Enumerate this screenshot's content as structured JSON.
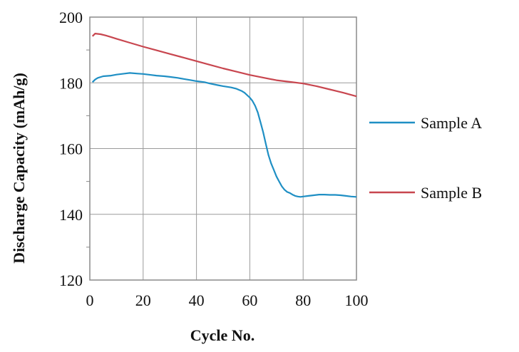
{
  "chart_data": {
    "type": "line",
    "title": "",
    "xlabel": "Cycle No.",
    "ylabel": "Discharge  Capacity (mAh/g)",
    "xlim": [
      0,
      100
    ],
    "ylim": [
      120,
      200
    ],
    "xticks": [
      "0",
      "20",
      "40",
      "60",
      "80",
      "100"
    ],
    "yticks": [
      "120",
      "140",
      "160",
      "180",
      "200"
    ],
    "grid": true,
    "legend_position": "right",
    "series": [
      {
        "name": "Sample A",
        "color": "#1f8fc4",
        "x": [
          1,
          2,
          3,
          5,
          8,
          10,
          13,
          15,
          18,
          20,
          23,
          25,
          28,
          30,
          33,
          35,
          38,
          40,
          43,
          45,
          48,
          50,
          53,
          55,
          57,
          58,
          60,
          61,
          62,
          63,
          64,
          65,
          66,
          67,
          68,
          69,
          70,
          71,
          72,
          73,
          74,
          75,
          76,
          77,
          78,
          79,
          80,
          82,
          84,
          86,
          88,
          90,
          92,
          94,
          96,
          98,
          100
        ],
        "y": [
          180.2,
          181.0,
          181.5,
          182.0,
          182.2,
          182.5,
          182.8,
          183.0,
          182.8,
          182.7,
          182.4,
          182.2,
          182.0,
          181.8,
          181.5,
          181.2,
          180.8,
          180.5,
          180.2,
          179.8,
          179.3,
          179.0,
          178.6,
          178.2,
          177.5,
          177.0,
          175.5,
          174.5,
          173.0,
          171.0,
          168.0,
          165.0,
          161.5,
          158.0,
          155.5,
          153.5,
          151.5,
          150.0,
          148.5,
          147.5,
          146.8,
          146.5,
          146.0,
          145.6,
          145.4,
          145.3,
          145.4,
          145.6,
          145.8,
          146.0,
          146.0,
          145.9,
          145.9,
          145.8,
          145.6,
          145.4,
          145.3
        ]
      },
      {
        "name": "Sample B",
        "color": "#c8464f",
        "x": [
          1,
          2,
          4,
          6,
          8,
          10,
          15,
          20,
          25,
          30,
          35,
          40,
          45,
          50,
          55,
          60,
          65,
          70,
          75,
          80,
          85,
          90,
          95,
          100
        ],
        "y": [
          194.2,
          195.0,
          194.8,
          194.4,
          193.9,
          193.4,
          192.2,
          191.0,
          189.9,
          188.8,
          187.7,
          186.6,
          185.5,
          184.4,
          183.4,
          182.4,
          181.6,
          180.8,
          180.3,
          179.8,
          179.0,
          178.0,
          177.0,
          175.9
        ]
      }
    ]
  }
}
